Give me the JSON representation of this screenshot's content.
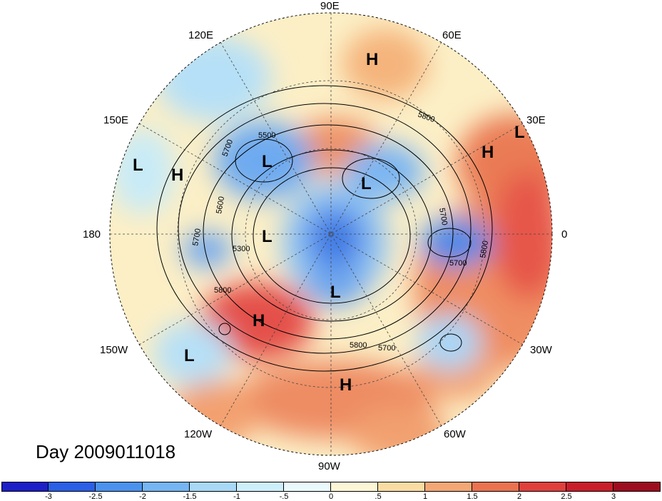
{
  "title": "Day 2009011018",
  "projection": "north-polar-stereographic",
  "lon_labels": {
    "90E": "90E",
    "60E": "60E",
    "30E": "30E",
    "0": "0",
    "30W": "30W",
    "60W": "60W",
    "90W": "90W",
    "120W": "120W",
    "150W": "150W",
    "180": "180",
    "150E": "150E",
    "120E": "120E"
  },
  "pressure_centers": [
    {
      "letter": "H",
      "name": "h-east-siberia"
    },
    {
      "letter": "L",
      "name": "l-east-asia-north"
    },
    {
      "letter": "H",
      "name": "h-north-pacific-west"
    },
    {
      "letter": "L",
      "name": "l-west-pacific"
    },
    {
      "letter": "L",
      "name": "l-central-asia"
    },
    {
      "letter": "H",
      "name": "h-middle-east"
    },
    {
      "letter": "L",
      "name": "l-africa-north"
    },
    {
      "letter": "L",
      "name": "l-arctic-pacific"
    },
    {
      "letter": "L",
      "name": "l-hudson-bay"
    },
    {
      "letter": "H",
      "name": "h-northeast-pacific"
    },
    {
      "letter": "L",
      "name": "l-subtropical-pacific"
    },
    {
      "letter": "H",
      "name": "h-gulf-of-mexico"
    }
  ],
  "contour_labels": [
    "5500",
    "5700",
    "5600",
    "5700",
    "5300",
    "5800",
    "5800",
    "5800",
    "5700",
    "5800",
    "5700",
    "5700"
  ],
  "colorbar": {
    "ticks": [
      "-3",
      "-2.5",
      "-2",
      "-1.5",
      "-1",
      "-.5",
      "0",
      ".5",
      "1",
      "1.5",
      "2",
      "2.5",
      "3"
    ],
    "colors": [
      "#1d1fc8",
      "#2a5fe6",
      "#4a92ee",
      "#74b5f2",
      "#a7d8f6",
      "#cdeffa",
      "#eaf9fc",
      "#fcf6d6",
      "#f9dca2",
      "#f3a774",
      "#ea724f",
      "#e0403c",
      "#c91e2a",
      "#9d0d1f"
    ]
  }
}
